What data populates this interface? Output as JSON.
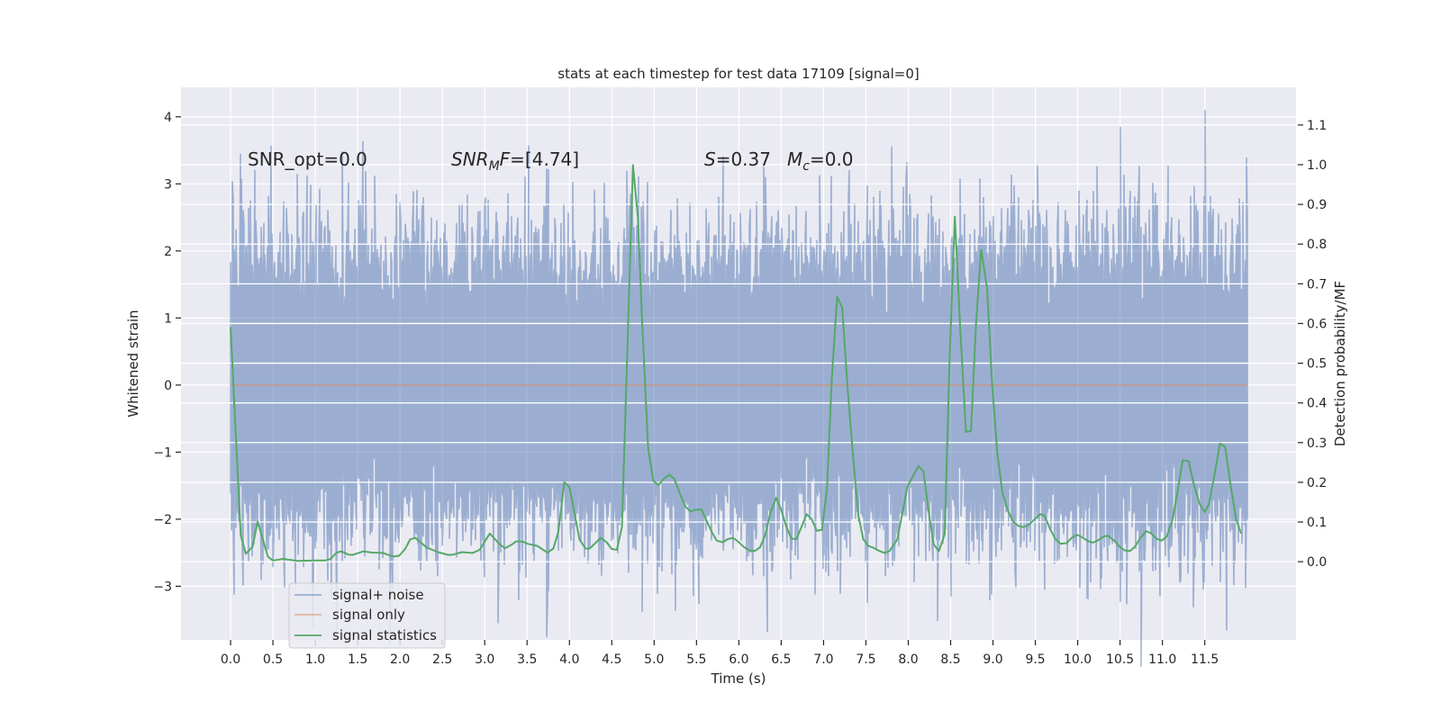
{
  "chart_data": {
    "type": "line",
    "title": "stats at each timestep for test data 17109 [signal=0]",
    "xlabel": "Time (s)",
    "ylabel": "Whitened strain",
    "ylabel_right": "Detection probability/MF",
    "xlim": [
      -0.585,
      12.577
    ],
    "ylim": [
      -3.8,
      4.44
    ],
    "ylim_right": [
      -0.197,
      1.195
    ],
    "grid": true,
    "x_ticks": [
      "0.0",
      "0.5",
      "1.0",
      "1.5",
      "2.0",
      "2.5",
      "3.0",
      "3.5",
      "4.0",
      "4.5",
      "5.0",
      "5.5",
      "6.0",
      "6.5",
      "7.0",
      "7.5",
      "8.0",
      "8.5",
      "9.0",
      "9.5",
      "10.0",
      "10.5",
      "11.0",
      "11.5"
    ],
    "y_ticks": [
      "-3",
      "-2",
      "-1",
      "0",
      "1",
      "2",
      "3",
      "4"
    ],
    "y_ticks_right": [
      "0.0",
      "0.1",
      "0.2",
      "0.3",
      "0.4",
      "0.5",
      "0.6",
      "0.7",
      "0.8",
      "0.9",
      "1.0",
      "1.1"
    ],
    "legend_placement": "lower-left",
    "colors": {
      "noise": "#4c72b0",
      "signal": "#dd8452",
      "stats": "#55a868",
      "background": "#eaeaf2"
    },
    "series": [
      {
        "name": "signal+ noise",
        "axis": "left",
        "kind": "gaussian noise",
        "std": 1.0,
        "t_range": [
          0,
          12
        ]
      },
      {
        "name": "signal only",
        "axis": "left",
        "x": [
          0,
          12
        ],
        "y": [
          0,
          0
        ]
      },
      {
        "name": "signal statistics",
        "axis": "right",
        "x": [
          0.0,
          0.12,
          0.18,
          0.26,
          0.32,
          0.44,
          0.5,
          0.62,
          0.79,
          1.0,
          1.12,
          1.18,
          1.25,
          1.31,
          1.39,
          1.44,
          1.57,
          1.67,
          1.8,
          1.92,
          1.99,
          2.06,
          2.12,
          2.18,
          2.32,
          2.45,
          2.57,
          2.63,
          2.73,
          2.86,
          2.94,
          3.06,
          3.18,
          3.24,
          3.32,
          3.37,
          3.44,
          3.51,
          3.62,
          3.74,
          3.81,
          3.87,
          3.94,
          4.0,
          4.12,
          4.19,
          4.24,
          4.37,
          4.44,
          4.5,
          4.56,
          4.62,
          4.75,
          4.81,
          4.86,
          4.93,
          4.99,
          5.05,
          5.12,
          5.18,
          5.24,
          5.31,
          5.37,
          5.43,
          5.49,
          5.56,
          5.62,
          5.69,
          5.74,
          5.81,
          5.87,
          5.93,
          5.99,
          6.06,
          6.13,
          6.19,
          6.25,
          6.31,
          6.37,
          6.44,
          6.5,
          6.56,
          6.62,
          6.68,
          6.74,
          6.8,
          6.86,
          6.92,
          6.98,
          7.04,
          7.1,
          7.16,
          7.22,
          7.28,
          7.35,
          7.41,
          7.47,
          7.53,
          7.59,
          7.65,
          7.72,
          7.78,
          7.87,
          7.99,
          8.12,
          8.18,
          8.24,
          8.3,
          8.36,
          8.43,
          8.49,
          8.55,
          8.61,
          8.68,
          8.74,
          8.8,
          8.86,
          8.93,
          8.99,
          9.05,
          9.11,
          9.18,
          9.24,
          9.3,
          9.36,
          9.43,
          9.49,
          9.56,
          9.61,
          9.68,
          9.74,
          9.8,
          9.87,
          9.93,
          9.99,
          10.05,
          10.12,
          10.18,
          10.24,
          10.31,
          10.36,
          10.43,
          10.5,
          10.56,
          10.62,
          10.68,
          10.74,
          10.81,
          10.87,
          10.93,
          10.99,
          11.05,
          11.12,
          11.19,
          11.24,
          11.31,
          11.37,
          11.44,
          11.5,
          11.55,
          11.61,
          11.68,
          11.74,
          11.81,
          11.87,
          11.93
        ],
        "y": [
          0.591,
          0.066,
          0.02,
          0.038,
          0.101,
          0.013,
          0.003,
          0.007,
          0.002,
          0.003,
          0.003,
          0.007,
          0.023,
          0.026,
          0.018,
          0.017,
          0.026,
          0.023,
          0.022,
          0.013,
          0.015,
          0.032,
          0.056,
          0.06,
          0.035,
          0.024,
          0.017,
          0.018,
          0.024,
          0.022,
          0.03,
          0.071,
          0.043,
          0.034,
          0.043,
          0.051,
          0.051,
          0.045,
          0.04,
          0.023,
          0.033,
          0.076,
          0.2,
          0.188,
          0.056,
          0.033,
          0.033,
          0.06,
          0.049,
          0.032,
          0.03,
          0.088,
          0.999,
          0.863,
          0.599,
          0.285,
          0.204,
          0.193,
          0.21,
          0.219,
          0.208,
          0.168,
          0.139,
          0.126,
          0.131,
          0.131,
          0.103,
          0.071,
          0.053,
          0.049,
          0.057,
          0.06,
          0.051,
          0.037,
          0.028,
          0.027,
          0.036,
          0.066,
          0.122,
          0.161,
          0.131,
          0.088,
          0.058,
          0.057,
          0.088,
          0.12,
          0.107,
          0.078,
          0.08,
          0.182,
          0.47,
          0.667,
          0.64,
          0.447,
          0.259,
          0.118,
          0.056,
          0.04,
          0.035,
          0.028,
          0.022,
          0.027,
          0.056,
          0.19,
          0.241,
          0.227,
          0.126,
          0.044,
          0.026,
          0.069,
          0.523,
          0.869,
          0.599,
          0.327,
          0.329,
          0.599,
          0.786,
          0.689,
          0.447,
          0.274,
          0.175,
          0.126,
          0.101,
          0.09,
          0.087,
          0.094,
          0.107,
          0.12,
          0.115,
          0.08,
          0.056,
          0.045,
          0.047,
          0.06,
          0.068,
          0.062,
          0.052,
          0.048,
          0.054,
          0.064,
          0.065,
          0.053,
          0.037,
          0.028,
          0.027,
          0.039,
          0.06,
          0.077,
          0.071,
          0.058,
          0.053,
          0.063,
          0.107,
          0.19,
          0.256,
          0.253,
          0.195,
          0.145,
          0.125,
          0.145,
          0.213,
          0.298,
          0.289,
          0.186,
          0.107,
          0.071
        ]
      }
    ],
    "annotations": {
      "snr_opt": "SNR_opt=0.0",
      "snr_mf": {
        "main": "SNR",
        "sub": "M",
        "rest_italic": "F",
        "value": "=[4.74]"
      },
      "s_value": {
        "label": "S",
        "value": "=0.37"
      },
      "mc_value": {
        "label": "M",
        "sub": "c",
        "value": "=0.0"
      }
    },
    "legend": [
      "signal+ noise",
      "signal only",
      "signal statistics"
    ]
  }
}
